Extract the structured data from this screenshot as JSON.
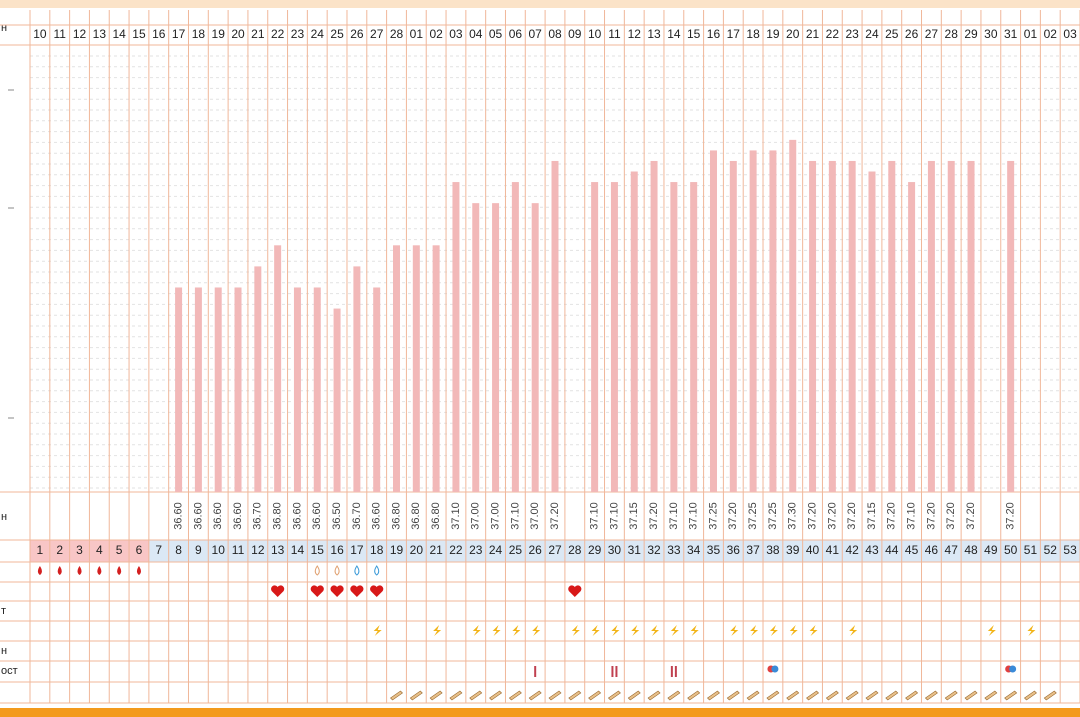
{
  "chart_data": {
    "type": "bar",
    "categories": [
      "10",
      "11",
      "12",
      "13",
      "14",
      "15",
      "16",
      "17",
      "18",
      "19",
      "20",
      "21",
      "22",
      "23",
      "24",
      "25",
      "26",
      "27",
      "28",
      "01",
      "02",
      "03",
      "04",
      "05",
      "06",
      "07",
      "08",
      "09",
      "10",
      "11",
      "12",
      "13",
      "14",
      "15",
      "16",
      "17",
      "18",
      "19",
      "20",
      "21",
      "22",
      "23",
      "24",
      "25",
      "26",
      "27",
      "28",
      "29",
      "30",
      "31",
      "01",
      "02",
      "03"
    ],
    "values": [
      null,
      null,
      null,
      null,
      null,
      null,
      null,
      36.6,
      36.6,
      36.6,
      36.6,
      36.7,
      36.8,
      36.6,
      36.6,
      36.5,
      36.7,
      36.6,
      36.8,
      36.8,
      36.8,
      37.1,
      37.0,
      37.0,
      37.1,
      37.0,
      37.2,
      null,
      37.1,
      37.1,
      37.15,
      37.2,
      37.1,
      37.1,
      37.25,
      37.2,
      37.25,
      37.25,
      37.3,
      37.2,
      37.2,
      37.2,
      37.15,
      37.2,
      37.1,
      37.2,
      37.2,
      37.2,
      null,
      37.2,
      null,
      null,
      null
    ],
    "value_labels": [
      null,
      null,
      null,
      null,
      null,
      null,
      null,
      "36.60",
      "36.60",
      "36.60",
      "36.60",
      "36.70",
      "36.80",
      "36.60",
      "36.60",
      "36.50",
      "36.70",
      "36.60",
      "36.80",
      "36.80",
      "36.80",
      "37.10",
      "37.00",
      "37.00",
      "37.10",
      "37.00",
      "37.20",
      null,
      "37.10",
      "37.10",
      "37.15",
      "37.20",
      "37.10",
      "37.10",
      "37.25",
      "37.20",
      "37.25",
      "37.25",
      "37.30",
      "37.20",
      "37.20",
      "37.20",
      "37.15",
      "37.20",
      "37.10",
      "37.20",
      "37.20",
      "37.20",
      null,
      "37.20",
      null,
      null,
      null
    ],
    "cycle_days": [
      1,
      2,
      3,
      4,
      5,
      6,
      7,
      8,
      9,
      10,
      11,
      12,
      13,
      14,
      15,
      16,
      17,
      18,
      19,
      20,
      21,
      22,
      23,
      24,
      25,
      26,
      27,
      28,
      29,
      30,
      31,
      32,
      33,
      34,
      35,
      36,
      37,
      38,
      39,
      40,
      41,
      42,
      43,
      44,
      45,
      46,
      47,
      48,
      49,
      50,
      51,
      52,
      53
    ],
    "color": "#f2b8b8",
    "ylim": [
      35.63,
      37.75
    ],
    "grid": true
  },
  "row_labels": [
    "н",
    "н",
    "т",
    "н",
    "ост"
  ]
}
